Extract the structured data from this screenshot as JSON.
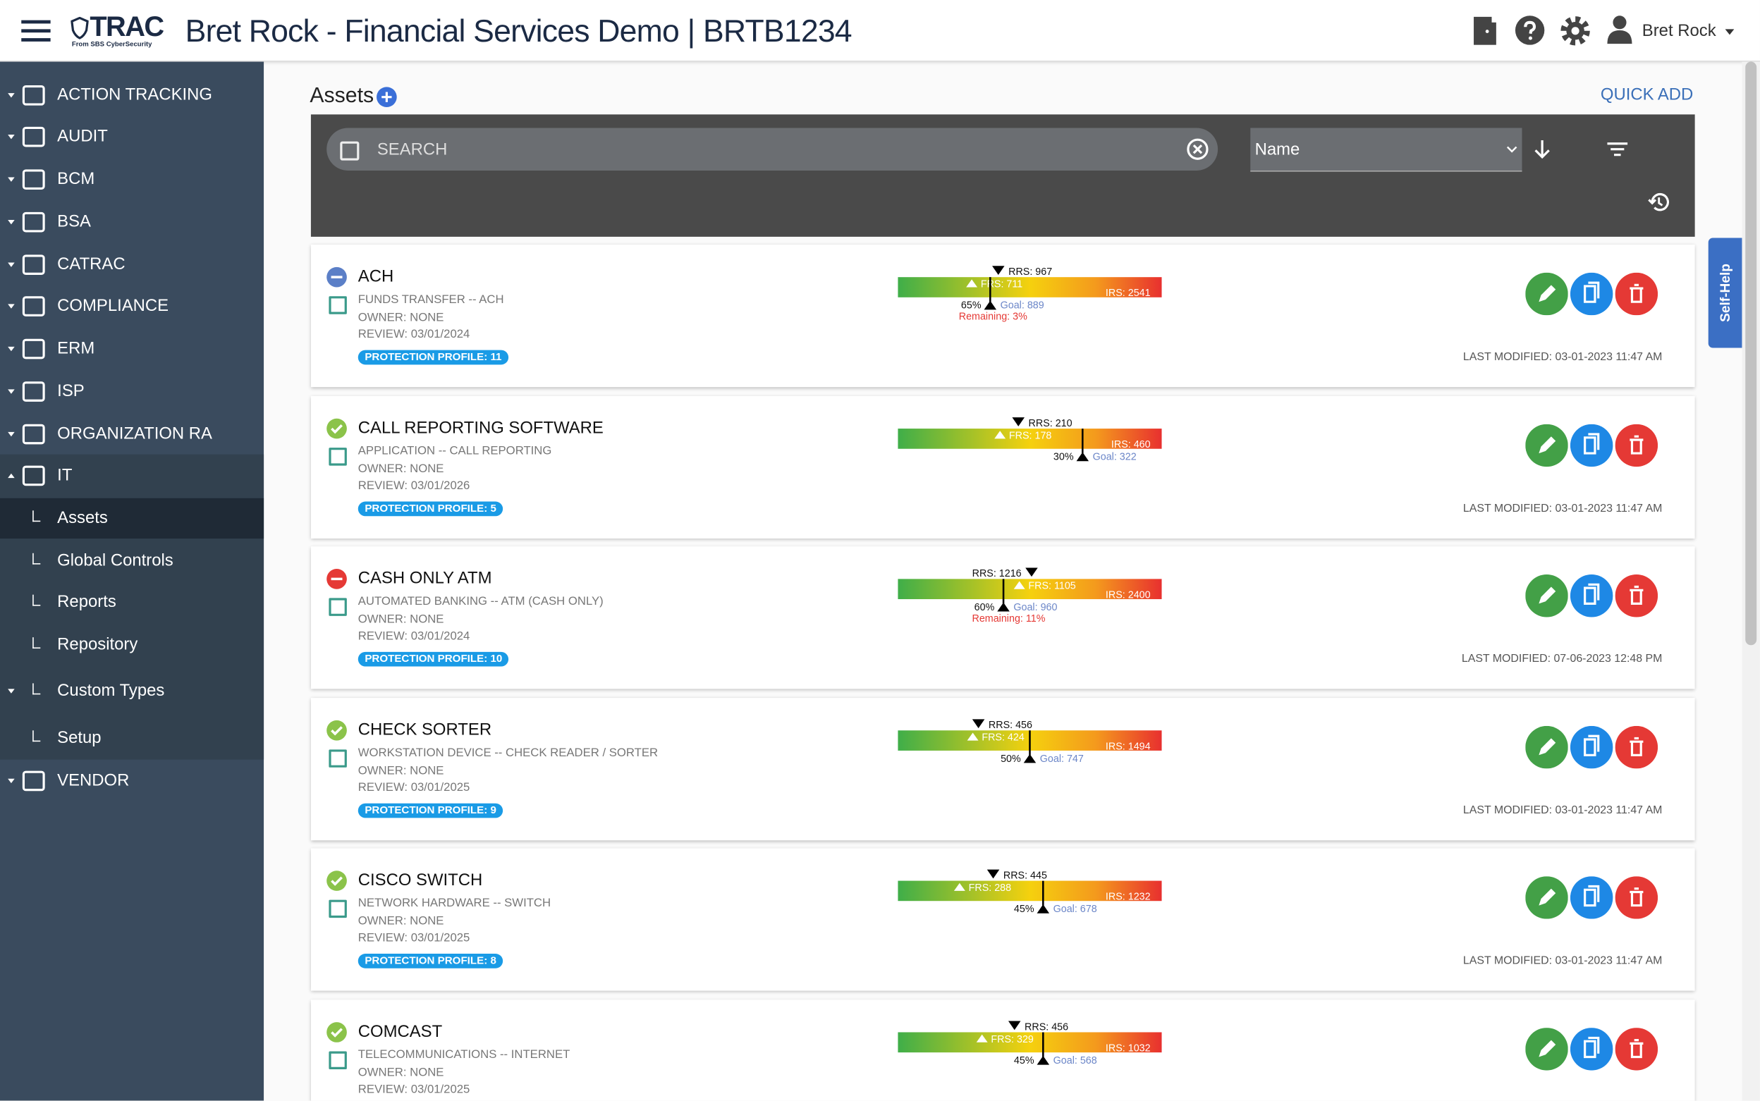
{
  "header": {
    "logo": "TRAC",
    "logo_sub": "From SBS CyberSecurity",
    "title": "Bret Rock - Financial Services Demo | BRTB1234",
    "user": "Bret Rock"
  },
  "sidebar": {
    "items": [
      {
        "label": "ACTION TRACKING"
      },
      {
        "label": "AUDIT"
      },
      {
        "label": "BCM"
      },
      {
        "label": "BSA"
      },
      {
        "label": "CATRAC"
      },
      {
        "label": "COMPLIANCE"
      },
      {
        "label": "ERM"
      },
      {
        "label": "ISP"
      },
      {
        "label": "ORGANIZATION RA"
      },
      {
        "label": "IT"
      }
    ],
    "sub_items": [
      {
        "label": "Assets"
      },
      {
        "label": "Global Controls"
      },
      {
        "label": "Reports"
      },
      {
        "label": "Repository"
      },
      {
        "label": "Custom Types"
      },
      {
        "label": "Setup"
      }
    ],
    "last_item": {
      "label": "VENDOR"
    }
  },
  "page": {
    "title": "Assets",
    "quick_add": "QUICK ADD",
    "search": "SEARCH",
    "sort": "Name",
    "self_help": "Self-Help"
  },
  "assets": [
    {
      "name": "ACH",
      "type": "FUNDS TRANSFER -- ACH",
      "owner": "OWNER: NONE",
      "review": "REVIEW: 03/01/2024",
      "profile": "PROTECTION PROFILE: 11",
      "modified": "LAST MODIFIED: 03-01-2023 11:47 AM",
      "status_icon": "minus",
      "status_color": "#5b7fc7",
      "gauge": {
        "rrs": {
          "value": 967,
          "label": "RRS: 967"
        },
        "frs": {
          "value": 711,
          "label": "FRS: 711"
        },
        "irs": {
          "value": 2541,
          "label": "IRS: 2541"
        },
        "goal": {
          "value": 889,
          "label": "Goal: 889"
        },
        "pct": "65%",
        "remaining": "Remaining: 3%"
      }
    },
    {
      "name": "CALL REPORTING SOFTWARE",
      "type": "APPLICATION -- CALL REPORTING",
      "owner": "OWNER: NONE",
      "review": "REVIEW: 03/01/2026",
      "profile": "PROTECTION PROFILE: 5",
      "modified": "LAST MODIFIED: 03-01-2023 11:47 AM",
      "status_icon": "check",
      "status_color": "#8bc34a",
      "gauge": {
        "rrs": {
          "value": 210,
          "label": "RRS: 210"
        },
        "frs": {
          "value": 178,
          "label": "FRS: 178"
        },
        "irs": {
          "value": 460,
          "label": "IRS: 460"
        },
        "goal": {
          "value": 322,
          "label": "Goal: 322"
        },
        "pct": "30%"
      }
    },
    {
      "name": "CASH ONLY ATM",
      "type": "AUTOMATED BANKING -- ATM (CASH ONLY)",
      "owner": "OWNER: NONE",
      "review": "REVIEW: 03/01/2024",
      "profile": "PROTECTION PROFILE: 10",
      "modified": "LAST MODIFIED: 07-06-2023 12:48 PM",
      "status_icon": "minus",
      "status_color": "#e53935",
      "gauge": {
        "rrs": {
          "value": 1216,
          "label": "RRS: 1216"
        },
        "frs": {
          "value": 1105,
          "label": "FRS: 1105"
        },
        "irs": {
          "value": 2400,
          "label": "IRS: 2400"
        },
        "goal": {
          "value": 960,
          "label": "Goal: 960"
        },
        "pct": "60%",
        "remaining": "Remaining: 11%"
      }
    },
    {
      "name": "CHECK SORTER",
      "type": "WORKSTATION DEVICE -- CHECK READER / SORTER",
      "owner": "OWNER: NONE",
      "review": "REVIEW: 03/01/2025",
      "profile": "PROTECTION PROFILE: 9",
      "modified": "LAST MODIFIED: 03-01-2023 11:47 AM",
      "status_icon": "check",
      "status_color": "#8bc34a",
      "gauge": {
        "rrs": {
          "value": 456,
          "label": "RRS: 456"
        },
        "frs": {
          "value": 424,
          "label": "FRS: 424"
        },
        "irs": {
          "value": 1494,
          "label": "IRS: 1494"
        },
        "goal": {
          "value": 747,
          "label": "Goal: 747"
        },
        "pct": "50%"
      }
    },
    {
      "name": "CISCO SWITCH",
      "type": "NETWORK HARDWARE -- SWITCH",
      "owner": "OWNER: NONE",
      "review": "REVIEW: 03/01/2025",
      "profile": "PROTECTION PROFILE: 8",
      "modified": "LAST MODIFIED: 03-01-2023 11:47 AM",
      "status_icon": "check",
      "status_color": "#8bc34a",
      "gauge": {
        "rrs": {
          "value": 445,
          "label": "RRS: 445"
        },
        "frs": {
          "value": 288,
          "label": "FRS: 288"
        },
        "irs": {
          "value": 1232,
          "label": "IRS: 1232"
        },
        "goal": {
          "value": 678,
          "label": "Goal: 678"
        },
        "pct": "45%"
      }
    },
    {
      "name": "COMCAST",
      "type": "TELECOMMUNICATIONS -- INTERNET",
      "owner": "OWNER: NONE",
      "review": "REVIEW: 03/01/2025",
      "status_icon": "check",
      "status_color": "#8bc34a",
      "gauge": {
        "rrs": {
          "value": 456,
          "label": "RRS: 456"
        },
        "frs": {
          "value": 329,
          "label": "FRS: 329"
        },
        "irs": {
          "value": 1032,
          "label": "IRS: 1032"
        },
        "goal": {
          "value": 568,
          "label": "Goal: 568"
        },
        "pct": "45%"
      }
    }
  ]
}
